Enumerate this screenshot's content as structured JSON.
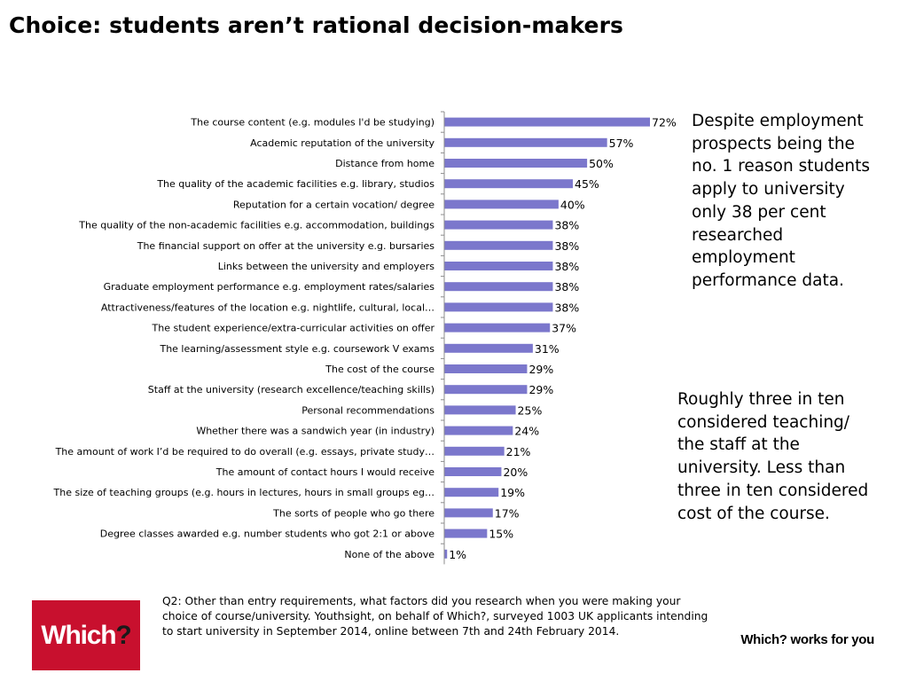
{
  "page": {
    "title": "Choice: students aren’t rational decision-makers",
    "note_1": "Despite employment prospects being the no. 1 reason students apply to university only 38 per cent researched employment performance data.",
    "note_2": "Roughly three in ten considered teaching/ the staff at the university. Less than three in ten considered cost of the course.",
    "footnote": "Q2: Other than entry requirements, what factors did you research when you were making your choice of course/university. Youthsight, on behalf of Which?, surveyed 1003 UK applicants intending to start university in September 2014, online between 7th and 24th February 2014.",
    "logo": {
      "text": "Which",
      "mark": "?",
      "color": "#c8102e"
    },
    "tagline": "Which? works for you"
  },
  "chart_data": {
    "type": "bar",
    "orientation": "horizontal",
    "bar_color": "#7b77cc",
    "value_suffix": "%",
    "xlim": [
      0,
      75
    ],
    "grid": false,
    "categories": [
      "The course content (e.g. modules I'd be studying)",
      "Academic reputation of the university",
      "Distance from home",
      "The quality of the academic facilities e.g. library, studios",
      "Reputation for a certain vocation/ degree",
      "The quality of the non-academic facilities e.g. accommodation, buildings",
      "The financial support on offer at the university e.g. bursaries",
      "Links between the university and employers",
      "Graduate employment performance e.g. employment rates/salaries",
      "Attractiveness/features of the location e.g. nightlife, cultural, local…",
      "The student experience/extra-curricular activities on offer",
      "The learning/assessment style e.g. coursework V exams",
      "The cost of the course",
      "Staff at the university (research excellence/teaching skills)",
      "Personal recommendations",
      "Whether there was a sandwich year (in industry)",
      "The amount of work I’d be required to do overall (e.g. essays, private study…",
      "The amount of contact hours I would receive",
      "The size of teaching groups (e.g. hours in lectures, hours in small groups eg…",
      "The sorts of people who go there",
      "Degree classes awarded e.g. number students who got 2:1 or above",
      "None of the above"
    ],
    "values": [
      72,
      57,
      50,
      45,
      40,
      38,
      38,
      38,
      38,
      38,
      37,
      31,
      29,
      29,
      25,
      24,
      21,
      20,
      19,
      17,
      15,
      1
    ]
  }
}
